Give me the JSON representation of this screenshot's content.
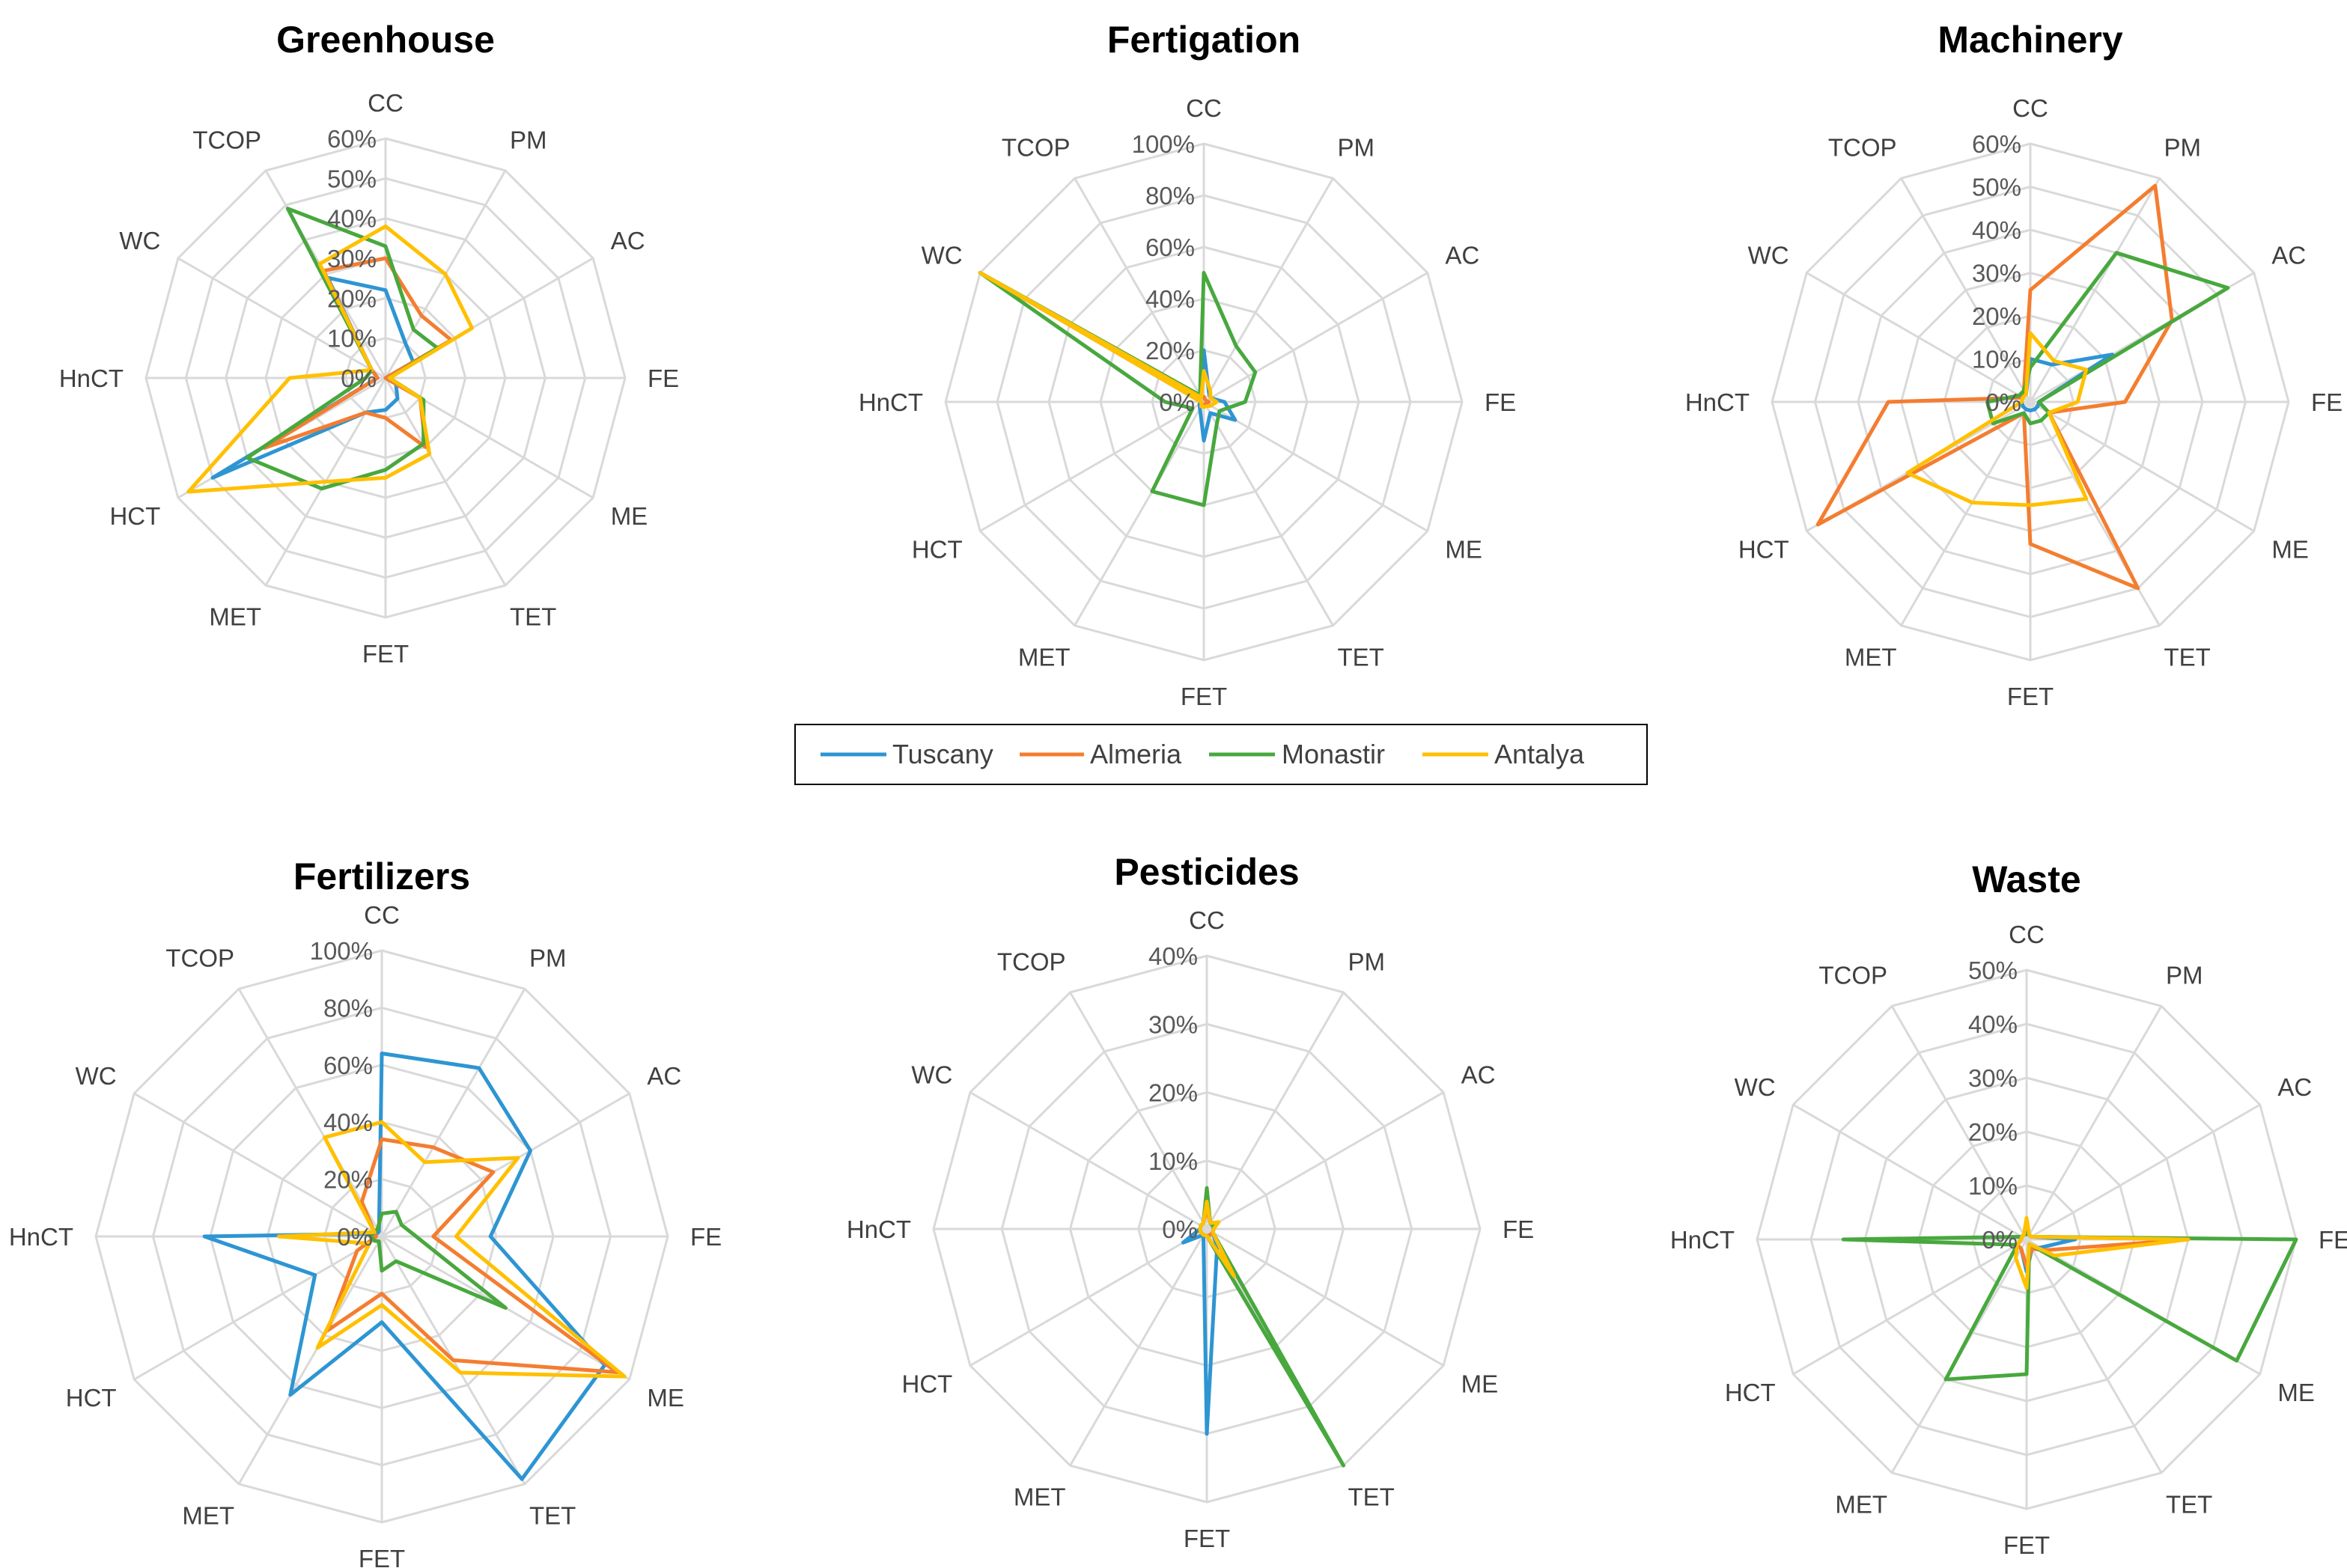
{
  "categories": [
    "CC",
    "PM",
    "AC",
    "FE",
    "ME",
    "TET",
    "FET",
    "MET",
    "HCT",
    "HnCT",
    "WC",
    "TCOP"
  ],
  "legend": [
    {
      "name": "Tuscany",
      "color": "#2E95D3"
    },
    {
      "name": "Almeria",
      "color": "#F47D30"
    },
    {
      "name": "Monastir",
      "color": "#48A83E"
    },
    {
      "name": "Antalya",
      "color": "#FFC000"
    }
  ],
  "chart_data": [
    {
      "type": "radar",
      "title": "Greenhouse",
      "max": 0.6,
      "ticks": [
        "0%",
        "10%",
        "20%",
        "30%",
        "40%",
        "50%",
        "60%"
      ],
      "series": [
        {
          "name": "Tuscany",
          "values": [
            0.22,
            0.1,
            0.08,
            0.0,
            0.03,
            0.06,
            0.08,
            0.1,
            0.5,
            0.02,
            0.04,
            0.29
          ]
        },
        {
          "name": "Almeria",
          "values": [
            0.3,
            0.18,
            0.19,
            0.0,
            0.1,
            0.2,
            0.1,
            0.1,
            0.35,
            0.02,
            0.04,
            0.31
          ]
        },
        {
          "name": "Monastir",
          "values": [
            0.33,
            0.14,
            0.15,
            0.01,
            0.11,
            0.19,
            0.23,
            0.32,
            0.4,
            0.05,
            0.04,
            0.49
          ]
        },
        {
          "name": "Antalya",
          "values": [
            0.38,
            0.3,
            0.25,
            0.01,
            0.1,
            0.22,
            0.25,
            0.3,
            0.57,
            0.24,
            0.04,
            0.33
          ]
        }
      ]
    },
    {
      "type": "radar",
      "title": "Fertigation",
      "max": 1.0,
      "ticks": [
        "0%",
        "20%",
        "40%",
        "60%",
        "80%",
        "100%"
      ],
      "series": [
        {
          "name": "Tuscany",
          "values": [
            0.2,
            0.04,
            0.03,
            0.08,
            0.14,
            0.05,
            0.15,
            0.03,
            0.02,
            0.01,
            1.0,
            0.02
          ]
        },
        {
          "name": "Almeria",
          "values": [
            0.02,
            0.01,
            0.01,
            0.02,
            0.01,
            0.01,
            0.01,
            0.01,
            0.01,
            0.01,
            1.0,
            0.02
          ]
        },
        {
          "name": "Monastir",
          "values": [
            0.5,
            0.25,
            0.23,
            0.16,
            0.07,
            0.1,
            0.4,
            0.4,
            0.05,
            0.15,
            1.0,
            0.03
          ]
        },
        {
          "name": "Antalya",
          "values": [
            0.12,
            0.05,
            0.03,
            0.05,
            0.03,
            0.02,
            0.02,
            0.02,
            0.01,
            0.01,
            1.0,
            0.02
          ]
        }
      ]
    },
    {
      "type": "radar",
      "title": "Machinery",
      "max": 0.6,
      "ticks": [
        "0%",
        "10%",
        "20%",
        "30%",
        "40%",
        "50%",
        "60%"
      ],
      "series": [
        {
          "name": "Tuscany",
          "values": [
            0.1,
            0.1,
            0.22,
            0.02,
            0.02,
            0.02,
            0.02,
            0.02,
            0.02,
            0.02,
            0.02,
            0.02
          ]
        },
        {
          "name": "Almeria",
          "values": [
            0.26,
            0.58,
            0.38,
            0.22,
            0.05,
            0.5,
            0.33,
            0.03,
            0.57,
            0.33,
            0.02,
            0.03
          ]
        },
        {
          "name": "Monastir",
          "values": [
            0.08,
            0.4,
            0.53,
            0.02,
            0.05,
            0.05,
            0.05,
            0.03,
            0.1,
            0.1,
            0.03,
            0.03
          ]
        },
        {
          "name": "Antalya",
          "values": [
            0.16,
            0.11,
            0.15,
            0.11,
            0.05,
            0.26,
            0.24,
            0.27,
            0.33,
            0.02,
            0.02,
            0.02
          ]
        }
      ]
    },
    {
      "type": "radar",
      "title": "Fertilizers",
      "max": 1.0,
      "ticks": [
        "0%",
        "20%",
        "40%",
        "60%",
        "80%",
        "100%"
      ],
      "series": [
        {
          "name": "Tuscany",
          "values": [
            0.64,
            0.68,
            0.6,
            0.38,
            0.9,
            0.98,
            0.3,
            0.64,
            0.27,
            0.62,
            0.02,
            0.02
          ]
        },
        {
          "name": "Almeria",
          "values": [
            0.34,
            0.36,
            0.45,
            0.18,
            0.95,
            0.5,
            0.2,
            0.38,
            0.1,
            0.02,
            0.03,
            0.14
          ]
        },
        {
          "name": "Monastir",
          "values": [
            0.08,
            0.1,
            0.08,
            0.12,
            0.5,
            0.1,
            0.12,
            0.02,
            0.03,
            0.04,
            0.03,
            0.03
          ]
        },
        {
          "name": "Antalya",
          "values": [
            0.4,
            0.3,
            0.55,
            0.26,
            0.98,
            0.55,
            0.24,
            0.45,
            0.05,
            0.36,
            0.03,
            0.4
          ]
        }
      ]
    },
    {
      "type": "radar",
      "title": "Pesticides",
      "max": 0.4,
      "ticks": [
        "0%",
        "10%",
        "20%",
        "30%",
        "40%"
      ],
      "series": [
        {
          "name": "Tuscany",
          "values": [
            0.05,
            0.01,
            0.01,
            0.01,
            0.01,
            0.03,
            0.3,
            0.01,
            0.04,
            0.01,
            0.01,
            0.01
          ]
        },
        {
          "name": "Almeria",
          "values": [
            0.03,
            0.01,
            0.01,
            0.01,
            0.01,
            0.01,
            0.01,
            0.01,
            0.01,
            0.01,
            0.01,
            0.01
          ]
        },
        {
          "name": "Monastir",
          "values": [
            0.06,
            0.01,
            0.01,
            0.01,
            0.01,
            0.4,
            0.01,
            0.01,
            0.01,
            0.01,
            0.01,
            0.01
          ]
        },
        {
          "name": "Antalya",
          "values": [
            0.04,
            0.01,
            0.02,
            0.01,
            0.01,
            0.08,
            0.01,
            0.01,
            0.01,
            0.01,
            0.01,
            0.01
          ]
        }
      ]
    },
    {
      "type": "radar",
      "title": "Waste",
      "max": 0.5,
      "ticks": [
        "0%",
        "10%",
        "20%",
        "30%",
        "40%",
        "50%"
      ],
      "series": [
        {
          "name": "Tuscany",
          "values": [
            0.02,
            0.01,
            0.01,
            0.09,
            0.03,
            0.02,
            0.06,
            0.02,
            0.02,
            0.01,
            0.01,
            0.01
          ]
        },
        {
          "name": "Almeria",
          "values": [
            0.01,
            0.01,
            0.01,
            0.3,
            0.04,
            0.02,
            0.05,
            0.02,
            0.02,
            0.01,
            0.01,
            0.01
          ]
        },
        {
          "name": "Monastir",
          "values": [
            0.01,
            0.01,
            0.01,
            0.5,
            0.45,
            0.01,
            0.25,
            0.3,
            0.02,
            0.34,
            0.01,
            0.01
          ]
        },
        {
          "name": "Antalya",
          "values": [
            0.04,
            0.01,
            0.01,
            0.3,
            0.06,
            0.01,
            0.09,
            0.04,
            0.02,
            0.01,
            0.01,
            0.01
          ]
        }
      ]
    }
  ]
}
